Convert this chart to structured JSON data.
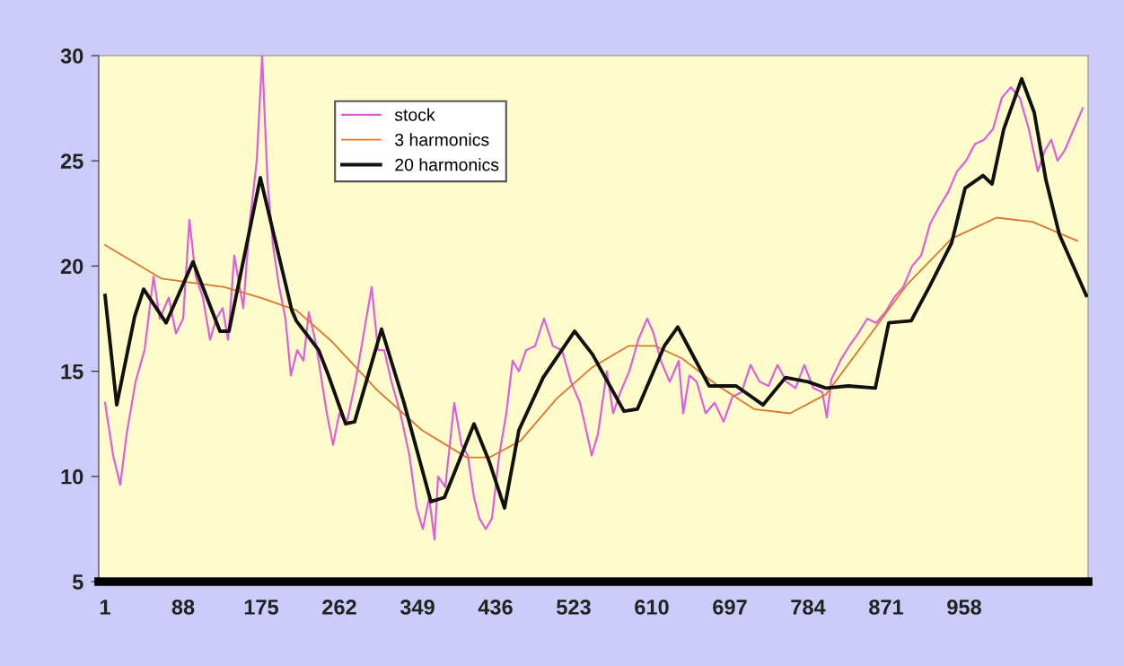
{
  "chart_data": {
    "type": "line",
    "xlim": [
      -6,
      1096
    ],
    "xticks": [
      1,
      88,
      175,
      262,
      349,
      436,
      523,
      610,
      697,
      784,
      871,
      958
    ],
    "ylim": [
      5,
      30
    ],
    "yticks": [
      5,
      10,
      15,
      20,
      25,
      30
    ],
    "grid": false,
    "legend": "top left",
    "marker": "none",
    "line_style": "solid",
    "series": [
      {
        "name": "stock",
        "color": "#dd5fdd",
        "x": [
          1,
          10,
          18,
          25,
          35,
          45,
          55,
          62,
          72,
          80,
          88,
          95,
          102,
          110,
          118,
          125,
          132,
          138,
          145,
          155,
          162,
          170,
          176,
          182,
          188,
          195,
          202,
          208,
          215,
          222,
          228,
          235,
          240,
          248,
          255,
          262,
          270,
          280,
          292,
          298,
          305,
          312,
          320,
          330,
          340,
          348,
          355,
          362,
          368,
          372,
          380,
          390,
          398,
          405,
          412,
          418,
          425,
          432,
          440,
          448,
          455,
          462,
          470,
          480,
          490,
          500,
          510,
          520,
          530,
          538,
          543,
          550,
          560,
          567,
          575,
          585,
          595,
          605,
          612,
          620,
          630,
          640,
          645,
          652,
          660,
          670,
          680,
          690,
          700,
          710,
          720,
          730,
          740,
          750,
          760,
          770,
          780,
          790,
          800,
          805,
          810,
          820,
          830,
          840,
          850,
          860,
          870,
          880,
          890,
          900,
          910,
          920,
          930,
          940,
          950,
          960,
          970,
          980,
          990,
          1000,
          1010,
          1020,
          1030,
          1040,
          1048,
          1055,
          1062,
          1070,
          1080,
          1090
        ],
        "values": [
          13.5,
          11,
          9.6,
          12,
          14.5,
          16,
          19.5,
          17.5,
          18.5,
          16.8,
          17.5,
          22.2,
          19.5,
          18.5,
          16.5,
          17.5,
          18,
          16.5,
          20.5,
          18.0,
          22,
          25,
          30,
          24,
          21,
          19,
          17.5,
          14.8,
          16,
          15.5,
          17.8,
          16.5,
          15.2,
          13,
          11.5,
          13,
          12.5,
          14.5,
          17.5,
          19,
          16,
          16,
          14.5,
          13,
          11,
          8.5,
          7.5,
          9,
          7,
          10,
          9.5,
          13.5,
          11.5,
          11,
          9,
          8,
          7.5,
          8,
          11,
          13,
          15.5,
          15.0,
          16,
          16.2,
          17.5,
          16.2,
          16,
          14.5,
          13.5,
          12,
          11,
          12,
          15,
          13,
          14,
          15,
          16.5,
          17.5,
          16.8,
          15.5,
          14.5,
          15.5,
          13,
          14.8,
          14.5,
          13,
          13.5,
          12.6,
          13.8,
          14,
          15.3,
          14.5,
          14.3,
          15.3,
          14.5,
          14.2,
          15.3,
          14.2,
          14.0,
          12.8,
          14.6,
          15.5,
          16.2,
          16.8,
          17.5,
          17.3,
          17.8,
          18.5,
          19.0,
          20,
          20.5,
          22,
          22.8,
          23.5,
          24.5,
          25,
          25.8,
          26,
          26.5,
          28,
          28.5,
          28,
          26.5,
          24.5,
          25.5,
          26,
          25,
          25.5,
          26.5,
          27.5
        ]
      },
      {
        "name": "3 harmonics",
        "color": "#d9772e",
        "x": [
          1,
          64,
          134,
          174,
          214,
          254,
          304,
          354,
          404,
          429,
          464,
          504,
          544,
          584,
          614,
          644,
          684,
          724,
          764,
          804,
          844,
          894,
          944,
          994,
          1034,
          1084
        ],
        "values": [
          21.0,
          19.4,
          19.0,
          18.5,
          17.9,
          16.4,
          14.1,
          12.2,
          10.9,
          10.9,
          11.7,
          13.7,
          15.2,
          16.2,
          16.2,
          15.6,
          14.3,
          13.2,
          13.0,
          13.9,
          16.2,
          19.1,
          21.3,
          22.3,
          22.1,
          21.2
        ]
      },
      {
        "name": "20 harmonics",
        "color": "#111111",
        "x": [
          1,
          14,
          34,
          44,
          69,
          99,
          129,
          139,
          174,
          209,
          214,
          239,
          249,
          269,
          279,
          309,
          334,
          364,
          379,
          412,
          429,
          446,
          462,
          489,
          524,
          544,
          579,
          594,
          624,
          639,
          674,
          704,
          734,
          759,
          784,
          804,
          829,
          859,
          874,
          899,
          919,
          944,
          959,
          979,
          989,
          1002,
          1022,
          1036,
          1049,
          1064,
          1094
        ],
        "values": [
          18.6,
          13.4,
          17.6,
          18.9,
          17.3,
          20.2,
          16.9,
          16.9,
          24.2,
          17.9,
          17.4,
          16.0,
          14.9,
          12.5,
          12.6,
          17.0,
          13.5,
          8.8,
          9.0,
          12.5,
          10.7,
          8.5,
          12.2,
          14.7,
          16.9,
          15.8,
          13.1,
          13.2,
          16.2,
          17.1,
          14.3,
          14.3,
          13.4,
          14.7,
          14.5,
          14.2,
          14.3,
          14.2,
          17.3,
          17.4,
          19.0,
          21.1,
          23.7,
          24.3,
          23.9,
          26.5,
          28.9,
          27.3,
          24.1,
          21.5,
          18.6
        ]
      }
    ]
  }
}
